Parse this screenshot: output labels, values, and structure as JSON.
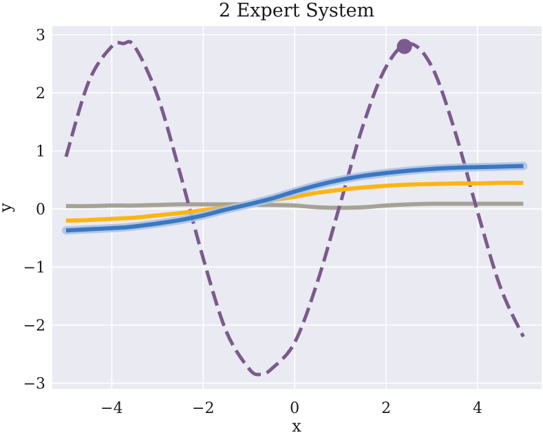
{
  "chart_data": {
    "type": "line",
    "title": "2 Expert System",
    "xlabel": "x",
    "ylabel": "y",
    "xlim": [
      -5.3,
      5.4
    ],
    "ylim": [
      -3.1,
      3.15
    ],
    "xticks": [
      -4,
      -2,
      0,
      2,
      4
    ],
    "xtick_labels": [
      "−4",
      "−2",
      "0",
      "2",
      "4"
    ],
    "yticks": [
      -3,
      -2,
      -1,
      0,
      1,
      2,
      3
    ],
    "ytick_labels": [
      "−3",
      "−2",
      "−1",
      "0",
      "1",
      "2",
      "3"
    ],
    "grid": true,
    "background": "#eaeaf2",
    "grid_color": "#ffffff",
    "x": [
      -5.0,
      -4.5,
      -4.0,
      -3.75,
      -3.5,
      -3.0,
      -2.5,
      -2.0,
      -1.5,
      -1.0,
      -0.75,
      -0.5,
      0.0,
      0.5,
      1.0,
      1.5,
      2.0,
      2.5,
      3.0,
      3.5,
      4.0,
      4.5,
      5.0
    ],
    "series": [
      {
        "style": "dashed",
        "color": "#7b5a8c",
        "values": [
          0.9,
          2.2,
          2.8,
          2.85,
          2.8,
          1.95,
          0.6,
          -0.85,
          -2.1,
          -2.75,
          -2.85,
          -2.75,
          -2.3,
          -1.25,
          0.1,
          1.45,
          2.45,
          2.85,
          2.45,
          1.35,
          -0.05,
          -1.35,
          -2.2
        ]
      },
      {
        "style": "solid",
        "color": "#3a78c0",
        "band_color": "#a9c1e6",
        "values": [
          -0.37,
          -0.35,
          -0.33,
          -0.32,
          -0.3,
          -0.25,
          -0.19,
          -0.11,
          -0.01,
          0.08,
          0.13,
          0.18,
          0.3,
          0.41,
          0.5,
          0.57,
          0.62,
          0.66,
          0.69,
          0.71,
          0.72,
          0.73,
          0.74
        ]
      },
      {
        "style": "solid",
        "color": "#fdb515",
        "values": [
          -0.2,
          -0.19,
          -0.17,
          -0.16,
          -0.15,
          -0.11,
          -0.07,
          -0.02,
          0.03,
          0.09,
          0.12,
          0.15,
          0.21,
          0.28,
          0.33,
          0.37,
          0.4,
          0.42,
          0.43,
          0.44,
          0.44,
          0.45,
          0.45
        ]
      },
      {
        "style": "solid",
        "color": "#a6a296",
        "values": [
          0.05,
          0.05,
          0.06,
          0.06,
          0.06,
          0.07,
          0.08,
          0.08,
          0.08,
          0.08,
          0.07,
          0.07,
          0.06,
          0.03,
          0.02,
          0.03,
          0.06,
          0.08,
          0.09,
          0.09,
          0.09,
          0.09,
          0.09
        ]
      }
    ],
    "marker": {
      "x": 2.4,
      "y": 2.8,
      "color": "#7b5a8c"
    }
  }
}
